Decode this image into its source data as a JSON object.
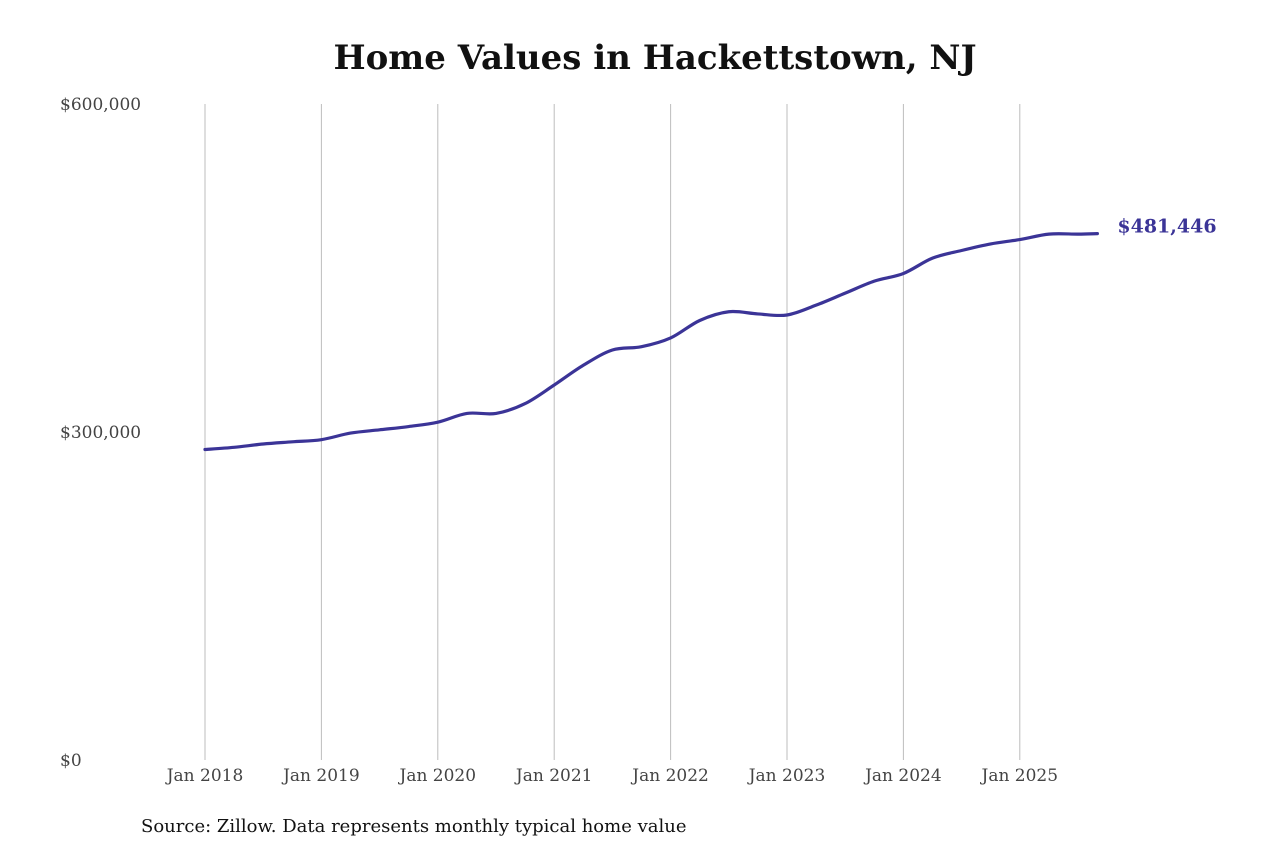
{
  "chart_data": {
    "type": "line",
    "title": "Home Values in Hackettstown, NJ",
    "source": "Source: Zillow. Data represents monthly typical home value",
    "xlabel": "",
    "ylabel": "",
    "ylim": [
      0,
      600000
    ],
    "y_ticks": [
      0,
      300000,
      600000
    ],
    "y_tick_labels": [
      "$0",
      "$300,000",
      "$600,000"
    ],
    "x_ticks": [
      "2018-01",
      "2019-01",
      "2020-01",
      "2021-01",
      "2022-01",
      "2023-01",
      "2024-01",
      "2025-01"
    ],
    "x_tick_labels": [
      "Jan 2018",
      "Jan 2019",
      "Jan 2020",
      "Jan 2021",
      "Jan 2022",
      "Jan 2023",
      "Jan 2024",
      "Jan 2025"
    ],
    "grid": "vertical",
    "line_color": "#3b3497",
    "end_label": "$481,446",
    "x": [
      "2018-01",
      "2018-04",
      "2018-07",
      "2018-10",
      "2019-01",
      "2019-04",
      "2019-07",
      "2019-10",
      "2020-01",
      "2020-04",
      "2020-07",
      "2020-10",
      "2021-01",
      "2021-04",
      "2021-07",
      "2021-10",
      "2022-01",
      "2022-04",
      "2022-07",
      "2022-10",
      "2023-01",
      "2023-04",
      "2023-07",
      "2023-10",
      "2024-01",
      "2024-04",
      "2024-07",
      "2024-10",
      "2025-01",
      "2025-04",
      "2025-07",
      "2025-09"
    ],
    "values": [
      284000,
      286000,
      289000,
      291000,
      293000,
      299000,
      302000,
      305000,
      309000,
      317000,
      317000,
      326000,
      343000,
      361000,
      375000,
      378000,
      386000,
      402000,
      410000,
      408000,
      407000,
      416000,
      427000,
      438000,
      445000,
      459000,
      466000,
      472000,
      476000,
      481000,
      481000,
      481446
    ]
  }
}
